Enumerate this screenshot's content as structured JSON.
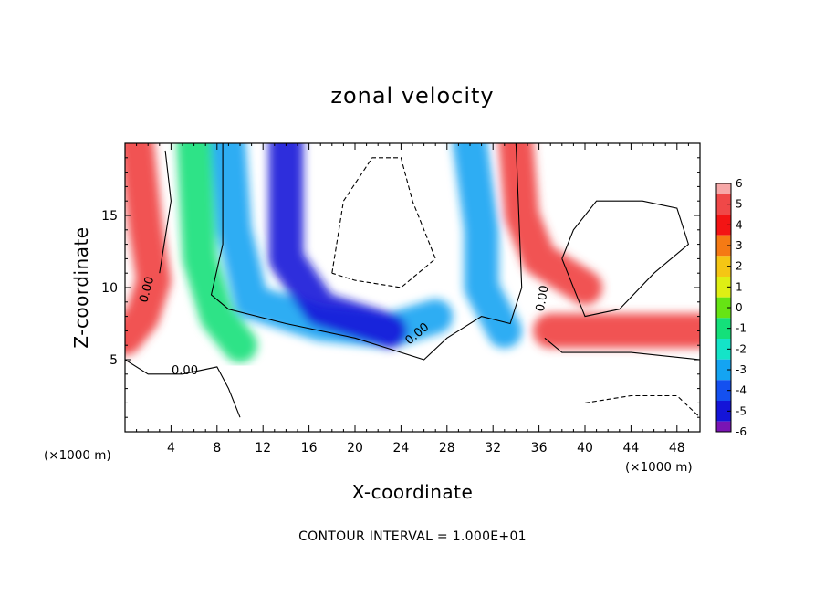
{
  "chart_data": {
    "type": "heatmap",
    "title": "zonal velocity",
    "xlabel": "X-coordinate",
    "ylabel": "Z-coordinate",
    "x_unit": "(×1000 m)",
    "z_unit": "(×1000 m)",
    "xlim": [
      0,
      50
    ],
    "ylim": [
      0,
      20
    ],
    "x_ticks": [
      4,
      8,
      12,
      16,
      20,
      24,
      28,
      32,
      36,
      40,
      44,
      48
    ],
    "y_ticks": [
      5,
      10,
      15
    ],
    "colorbar": {
      "ticks": [
        6,
        5,
        4,
        3,
        2,
        1,
        0,
        -1,
        -2,
        -3,
        -4,
        -5,
        -6
      ],
      "colors": [
        "#f7a8a8",
        "#f04848",
        "#f31414",
        "#f57a14",
        "#f5c614",
        "#dfef14",
        "#66e414",
        "#14e07a",
        "#14e4c8",
        "#14a4f2",
        "#1450f0",
        "#1414d8",
        "#7a14b4"
      ]
    },
    "contour_label": "0.00",
    "contour_interval_text": "CONTOUR INTERVAL = 1.000E+01",
    "features": [
      {
        "kind": "band",
        "color": "#f04040",
        "points": [
          [
            1,
            20
          ],
          [
            1.8,
            14
          ],
          [
            2.5,
            10.5
          ],
          [
            1.5,
            8
          ],
          [
            0,
            6.5
          ]
        ]
      },
      {
        "kind": "band",
        "color": "#14a4f2",
        "points": [
          [
            9,
            20
          ],
          [
            9.5,
            14
          ],
          [
            11,
            9
          ],
          [
            17,
            7.5
          ],
          [
            23,
            7
          ],
          [
            27,
            8
          ]
        ]
      },
      {
        "kind": "band",
        "color": "#1414d8",
        "points": [
          [
            14,
            20
          ],
          [
            14,
            12
          ],
          [
            17,
            8.5
          ],
          [
            23,
            7
          ]
        ]
      },
      {
        "kind": "band",
        "color": "#14e07a",
        "points": [
          [
            6,
            20
          ],
          [
            6.5,
            12
          ],
          [
            8,
            8
          ],
          [
            10,
            6
          ]
        ]
      },
      {
        "kind": "band",
        "color": "#f04040",
        "points": [
          [
            34,
            20
          ],
          [
            34.5,
            15
          ],
          [
            36,
            12
          ],
          [
            40,
            10
          ]
        ]
      },
      {
        "kind": "band",
        "color": "#14a4f2",
        "points": [
          [
            30,
            20
          ],
          [
            31,
            14
          ],
          [
            31,
            10
          ],
          [
            33,
            7
          ]
        ]
      },
      {
        "kind": "band",
        "color": "#f04040",
        "points": [
          [
            37,
            7
          ],
          [
            43,
            7
          ],
          [
            50,
            7
          ]
        ]
      }
    ],
    "contours": [
      {
        "style": "solid",
        "points": [
          [
            3,
            11
          ],
          [
            4,
            16
          ],
          [
            3.5,
            19.5
          ]
        ]
      },
      {
        "style": "solid",
        "points": [
          [
            8.5,
            20
          ],
          [
            8.5,
            13
          ],
          [
            7.5,
            9.5
          ],
          [
            9,
            8.5
          ],
          [
            14,
            7.5
          ],
          [
            20,
            6.5
          ],
          [
            26,
            5
          ],
          [
            28,
            6.5
          ],
          [
            31,
            8
          ],
          [
            33.5,
            7.5
          ],
          [
            34.5,
            10
          ],
          [
            34,
            20
          ]
        ]
      },
      {
        "style": "solid",
        "points": [
          [
            36.5,
            6.5
          ],
          [
            38,
            5.5
          ],
          [
            44,
            5.5
          ],
          [
            50,
            5
          ]
        ]
      },
      {
        "style": "solid",
        "points": [
          [
            0,
            5
          ],
          [
            2,
            4
          ],
          [
            5,
            4
          ],
          [
            8,
            4.5
          ],
          [
            9,
            3
          ],
          [
            10,
            1
          ]
        ]
      },
      {
        "style": "dashed",
        "points": [
          [
            18,
            11
          ],
          [
            19,
            16
          ],
          [
            21.5,
            19
          ],
          [
            24,
            19
          ],
          [
            25,
            16
          ],
          [
            27,
            12
          ],
          [
            24,
            10
          ],
          [
            20,
            10.5
          ],
          [
            18,
            11
          ]
        ]
      },
      {
        "style": "solid",
        "points": [
          [
            38,
            12
          ],
          [
            39,
            14
          ],
          [
            41,
            16
          ],
          [
            45,
            16
          ],
          [
            48,
            15.5
          ],
          [
            49,
            13
          ],
          [
            46,
            11
          ],
          [
            43,
            8.5
          ],
          [
            40,
            8
          ],
          [
            38,
            12
          ]
        ]
      },
      {
        "style": "dashed",
        "points": [
          [
            40,
            2
          ],
          [
            44,
            2.5
          ],
          [
            48,
            2.5
          ],
          [
            50,
            1
          ]
        ]
      }
    ]
  }
}
